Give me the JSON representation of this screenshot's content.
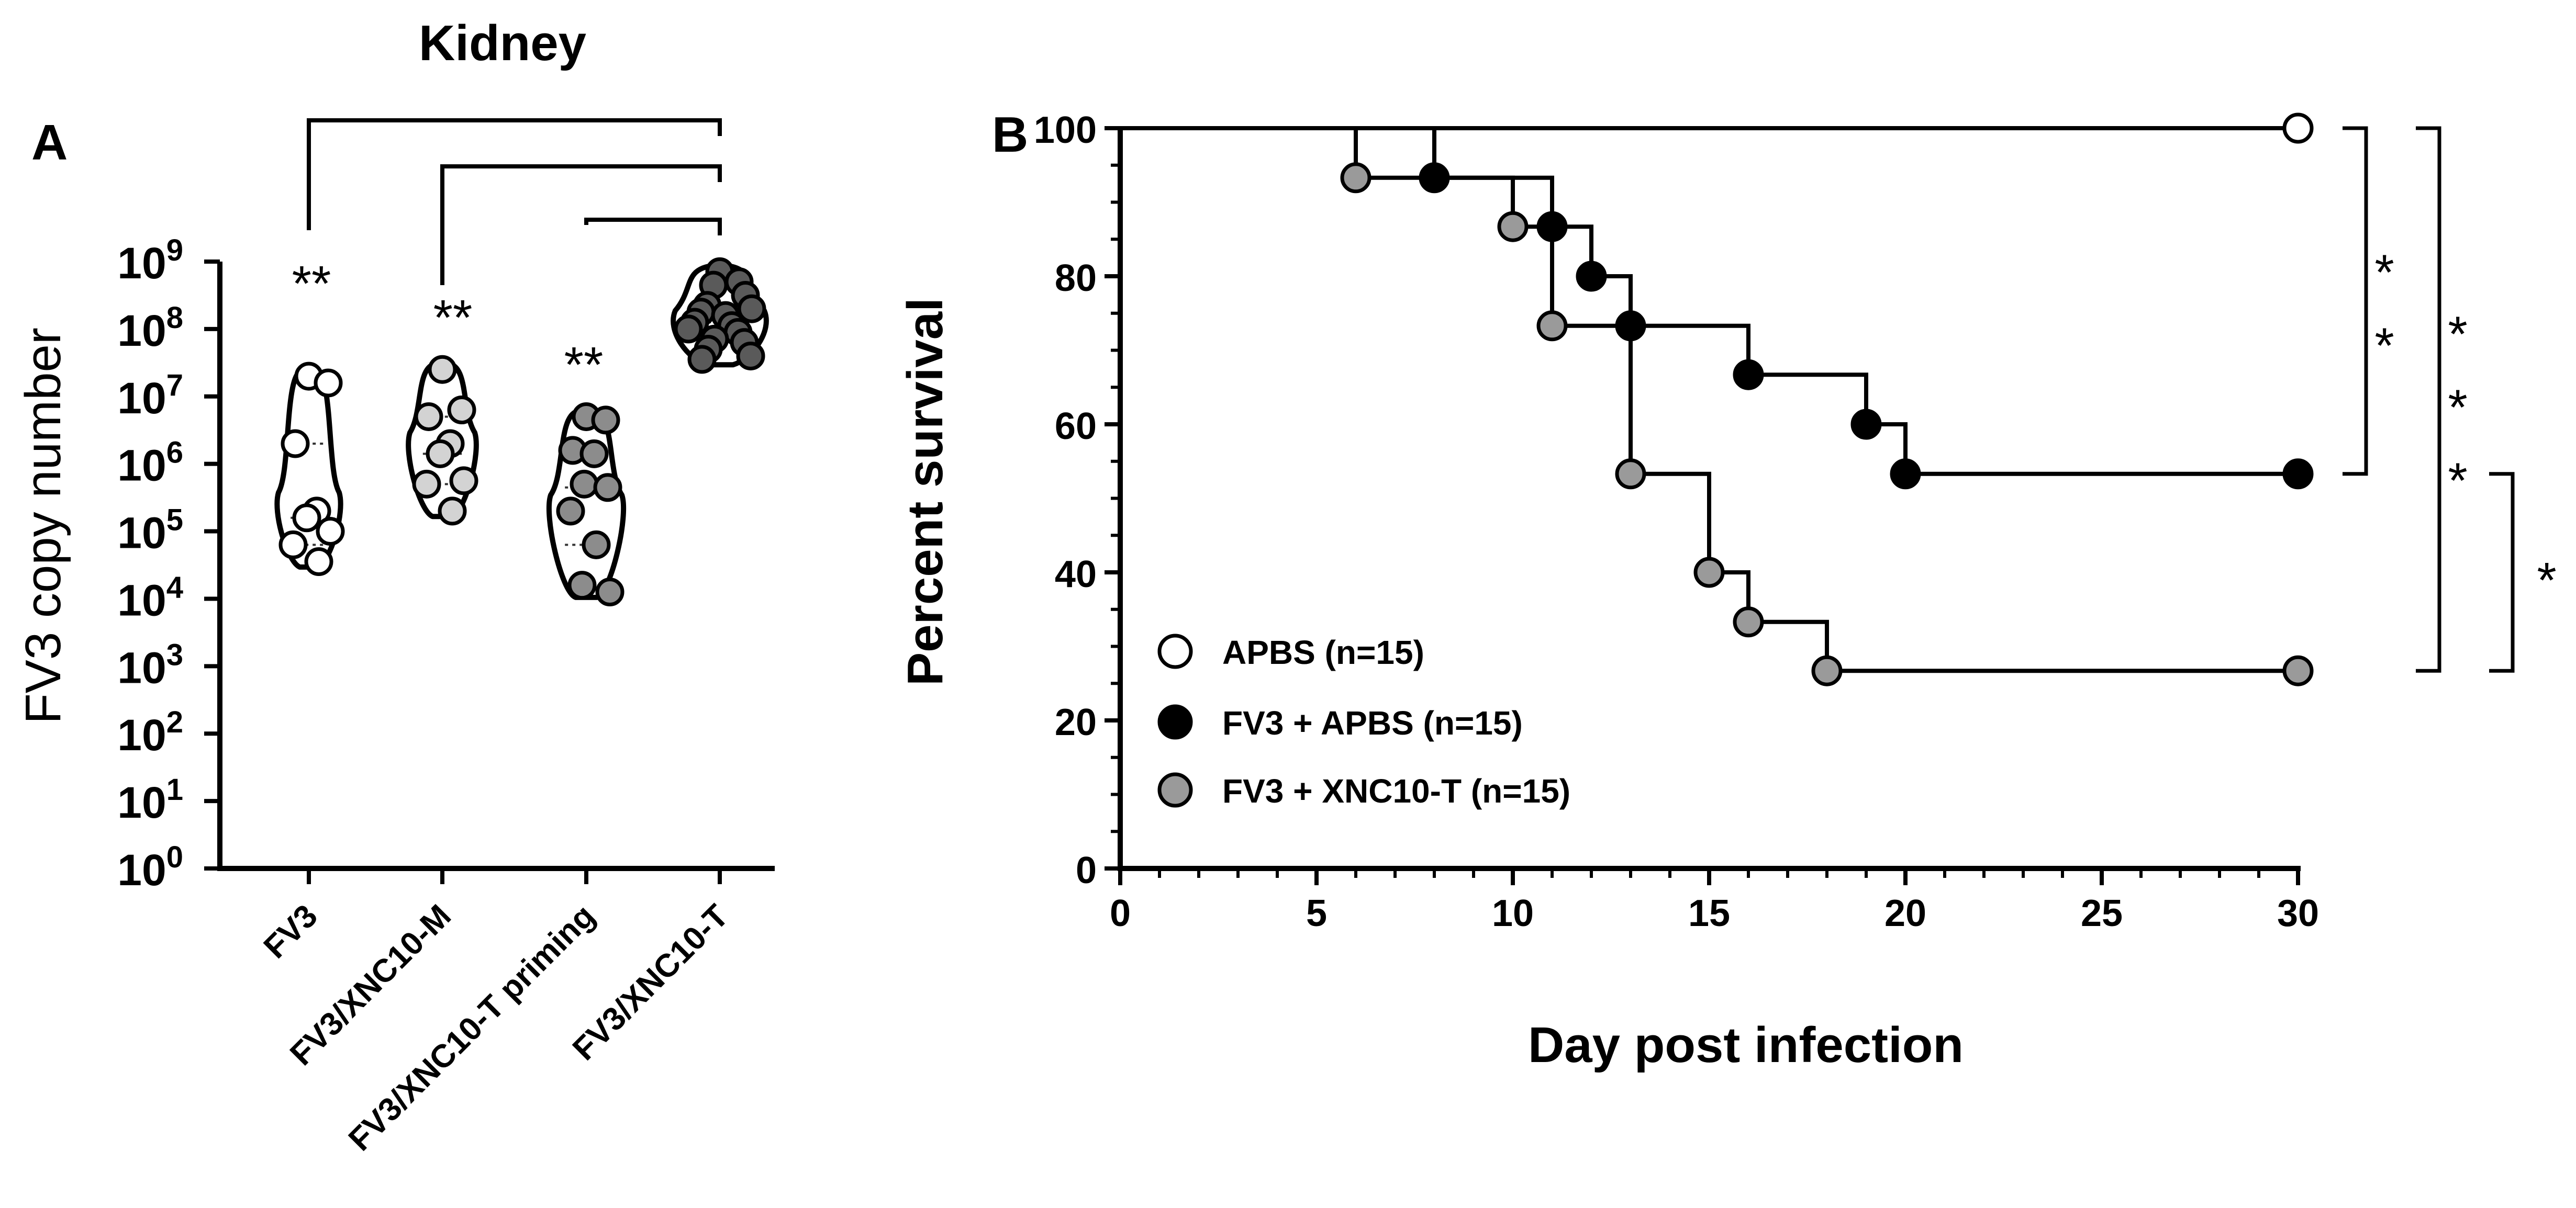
{
  "panel_a": {
    "label": "A",
    "title": "Kidney",
    "ylabel": "FV3 copy number",
    "colors": {
      "fv3": "#ffffff",
      "xnc10m": "#d3d3d3",
      "priming": "#8c8c8c",
      "xnc10t": "#5a5a5a"
    }
  },
  "panel_b": {
    "label": "B",
    "colors": {
      "apbs": "#ffffff",
      "fv3_apbs": "#000000",
      "fv3_xnc10t": "#9a9a9a"
    }
  },
  "chart_data": [
    {
      "type": "scatter",
      "subtype": "violin",
      "title": "Kidney",
      "xlabel": "",
      "ylabel": "FV3 copy number",
      "yscale": "log10",
      "ylim": [
        1,
        1000000000
      ],
      "yticks": [
        {
          "base": "10",
          "exp": "0"
        },
        {
          "base": "10",
          "exp": "1"
        },
        {
          "base": "10",
          "exp": "2"
        },
        {
          "base": "10",
          "exp": "3"
        },
        {
          "base": "10",
          "exp": "4"
        },
        {
          "base": "10",
          "exp": "5"
        },
        {
          "base": "10",
          "exp": "6"
        },
        {
          "base": "10",
          "exp": "7"
        },
        {
          "base": "10",
          "exp": "8"
        },
        {
          "base": "10",
          "exp": "9"
        }
      ],
      "categories": [
        "FV3",
        "FV3/XNC10-M",
        "FV3/XNC10-T priming",
        "FV3/XNC10-T"
      ],
      "series": [
        {
          "name": "FV3",
          "log10_values": [
            7.3,
            7.2,
            6.3,
            5.3,
            5.2,
            5.0,
            4.8,
            4.55
          ]
        },
        {
          "name": "FV3/XNC10-M",
          "log10_values": [
            7.4,
            6.8,
            6.7,
            6.3,
            6.15,
            5.75,
            5.7,
            5.3
          ]
        },
        {
          "name": "FV3/XNC10-T priming",
          "log10_values": [
            6.7,
            6.65,
            6.2,
            6.15,
            5.7,
            5.65,
            5.3,
            4.8,
            4.2,
            4.1
          ]
        },
        {
          "name": "FV3/XNC10-T",
          "log10_values": [
            8.85,
            8.7,
            8.65,
            8.5,
            8.35,
            8.3,
            8.25,
            8.2,
            8.1,
            8.05,
            8.0,
            7.95,
            7.85,
            7.8,
            7.7,
            7.6,
            7.55
          ]
        }
      ],
      "annotations": [
        {
          "group": "FV3",
          "text": "**"
        },
        {
          "group": "FV3/XNC10-M",
          "text": "**"
        },
        {
          "group": "FV3/XNC10-T priming",
          "text": "**"
        }
      ]
    },
    {
      "type": "line",
      "subtype": "kaplan-meier",
      "title": "",
      "xlabel": "Day post infection",
      "ylabel": "Percent survival",
      "xlim": [
        0,
        30
      ],
      "ylim": [
        0,
        100
      ],
      "xticks": [
        "0",
        "5",
        "10",
        "15",
        "20",
        "25",
        "30"
      ],
      "yticks": [
        "0",
        "20",
        "40",
        "60",
        "80",
        "100"
      ],
      "series": [
        {
          "name": "APBS (n=15)",
          "x": [
            0,
            30
          ],
          "y": [
            100,
            100
          ],
          "marker_x": [
            30
          ],
          "marker_y": [
            100
          ]
        },
        {
          "name": "FV3 + APBS (n=15)",
          "x": [
            0,
            8,
            11,
            12,
            13,
            16,
            19,
            20,
            30
          ],
          "y": [
            100,
            93.3,
            86.7,
            80,
            73.3,
            66.7,
            60,
            53.3,
            53.3
          ],
          "marker_x": [
            8,
            11,
            12,
            13,
            16,
            19,
            20,
            30
          ],
          "marker_y": [
            93.3,
            86.7,
            80,
            73.3,
            66.7,
            60,
            53.3,
            53.3
          ]
        },
        {
          "name": "FV3 + XNC10-T (n=15)",
          "x": [
            0,
            6,
            10,
            11,
            13,
            15,
            16,
            18,
            30
          ],
          "y": [
            100,
            93.3,
            86.7,
            73.3,
            53.3,
            40,
            33.3,
            26.7,
            26.7
          ],
          "marker_x": [
            6,
            10,
            11,
            13,
            15,
            16,
            18,
            30
          ],
          "marker_y": [
            93.3,
            86.7,
            73.3,
            53.3,
            40,
            33.3,
            26.7,
            26.7
          ]
        }
      ],
      "legend": [
        "APBS (n=15)",
        "FV3 + APBS (n=15)",
        "FV3 + XNC10-T (n=15)"
      ],
      "legend_position": "bottom-left",
      "significance": [
        {
          "groups": [
            "APBS (n=15)",
            "FV3 + APBS (n=15)"
          ],
          "text": "**"
        },
        {
          "groups": [
            "APBS (n=15)",
            "FV3 + XNC10-T (n=15)"
          ],
          "text": "***"
        },
        {
          "groups": [
            "FV3 + APBS (n=15)",
            "FV3 + XNC10-T (n=15)"
          ],
          "text": "*"
        }
      ]
    }
  ]
}
